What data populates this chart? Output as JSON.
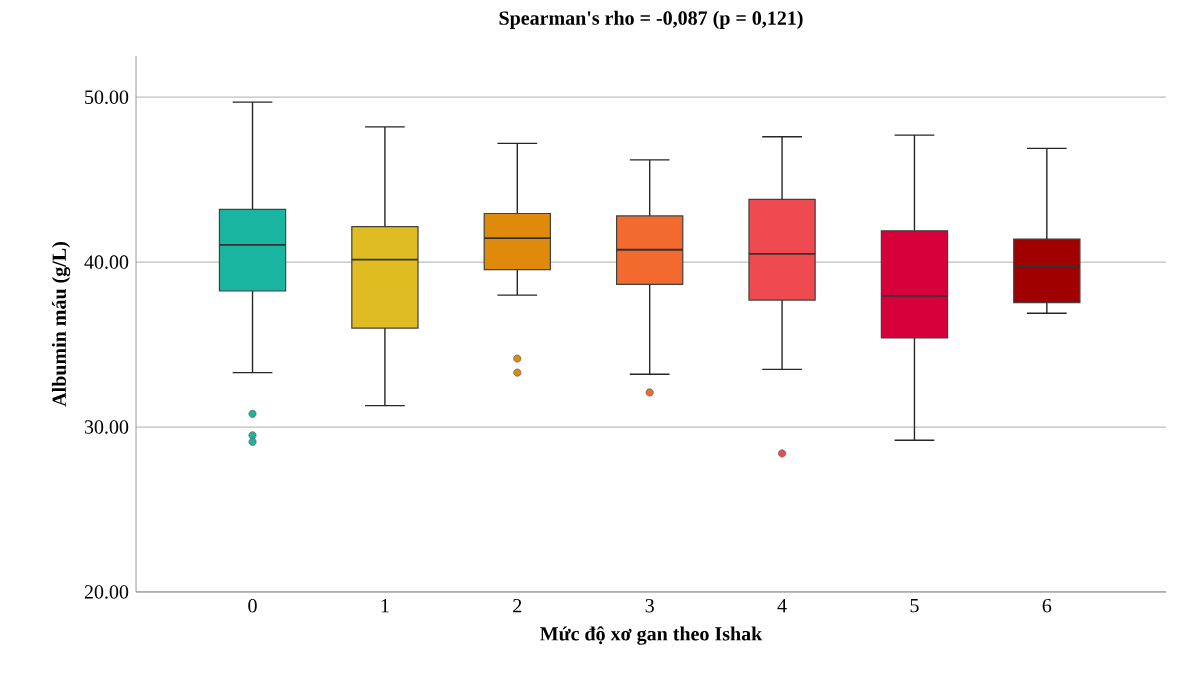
{
  "chart_data": {
    "type": "box",
    "title": "Spearman's rho = -0,087 (p = 0,121)",
    "xlabel": "Mức độ xơ gan theo Ishak",
    "ylabel": "Albumin máu (g/L)",
    "categories": [
      "0",
      "1",
      "2",
      "3",
      "4",
      "5",
      "6"
    ],
    "boxes": [
      {
        "low": 33.3,
        "q1": 38.25,
        "median": 41.05,
        "q3": 43.2,
        "high": 49.7,
        "outliers": [
          30.8,
          29.5,
          29.1
        ]
      },
      {
        "low": 31.3,
        "q1": 36.0,
        "median": 40.15,
        "q3": 42.15,
        "high": 48.2
      },
      {
        "low": 38.0,
        "q1": 39.55,
        "median": 41.45,
        "q3": 42.95,
        "high": 47.2,
        "outliers": [
          34.15,
          33.3
        ]
      },
      {
        "low": 33.2,
        "q1": 38.65,
        "median": 40.75,
        "q3": 42.8,
        "high": 46.2,
        "outliers": [
          32.1
        ]
      },
      {
        "low": 33.5,
        "q1": 37.7,
        "median": 40.5,
        "q3": 43.8,
        "high": 47.6,
        "outliers": [
          28.4
        ]
      },
      {
        "low": 29.2,
        "q1": 35.4,
        "median": 37.95,
        "q3": 41.9,
        "high": 47.7
      },
      {
        "low": 36.9,
        "q1": 37.55,
        "median": 39.75,
        "q3": 41.4,
        "high": 46.9
      }
    ],
    "colors": [
      "#1ab5a0",
      "#e0bc23",
      "#e08a0c",
      "#f26a2e",
      "#ef4a4f",
      "#d6003a",
      "#a00000"
    ],
    "ylim": [
      20,
      52.5
    ],
    "yticks": [
      {
        "value": 20,
        "label": "20.00"
      },
      {
        "value": 30,
        "label": "30.00"
      },
      {
        "value": 40,
        "label": "40.00"
      },
      {
        "value": 50,
        "label": "50.00"
      }
    ],
    "grid": "y",
    "marker": "circle"
  }
}
